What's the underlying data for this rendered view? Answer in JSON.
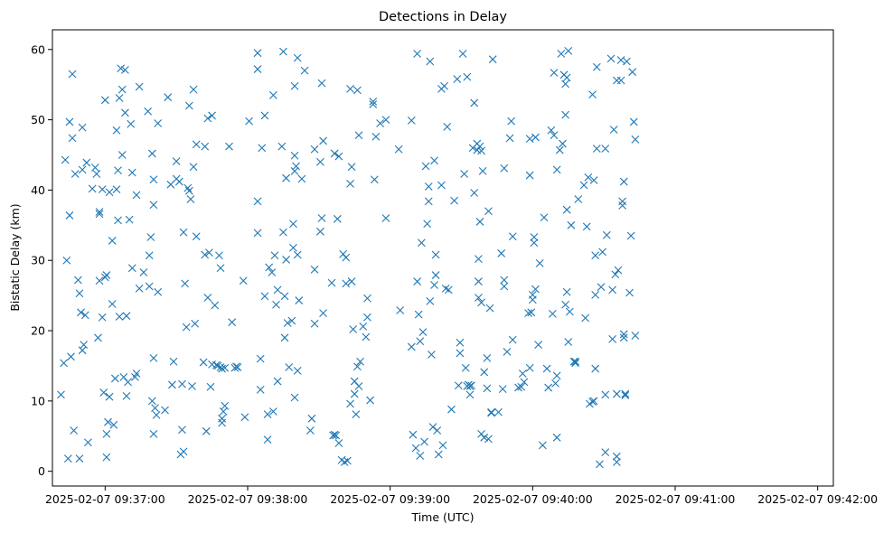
{
  "chart_data": {
    "type": "scatter",
    "title": "Detections in Delay",
    "xlabel": "Time (UTC)",
    "ylabel": "Bistatic Delay (km)",
    "marker": "x",
    "color": "#1f77b4",
    "xlim_minutes_after_0937": [
      -0.37,
      5.11
    ],
    "ylim": [
      -2.1,
      62.8
    ],
    "x_ticks": [
      {
        "value": 0,
        "label": "2025-02-07 09:37:00"
      },
      {
        "value": 1,
        "label": "2025-02-07 09:38:00"
      },
      {
        "value": 2,
        "label": "2025-02-07 09:39:00"
      },
      {
        "value": 3,
        "label": "2025-02-07 09:40:00"
      },
      {
        "value": 4,
        "label": "2025-02-07 09:41:00"
      },
      {
        "value": 5,
        "label": "2025-02-07 09:42:00"
      }
    ],
    "y_ticks": [
      0,
      10,
      20,
      30,
      40,
      50,
      60
    ],
    "points_x_unit": "minutes after 09:37:00",
    "points": [
      [
        -0.31,
        10.9
      ],
      [
        -0.29,
        15.4
      ],
      [
        -0.28,
        44.3
      ],
      [
        -0.27,
        30.0
      ],
      [
        -0.26,
        1.8
      ],
      [
        -0.25,
        49.7
      ],
      [
        -0.25,
        36.4
      ],
      [
        -0.24,
        16.3
      ],
      [
        -0.23,
        56.5
      ],
      [
        -0.23,
        47.4
      ],
      [
        -0.22,
        5.8
      ],
      [
        -0.21,
        42.3
      ],
      [
        -0.19,
        27.2
      ],
      [
        -0.18,
        25.3
      ],
      [
        -0.18,
        1.8
      ],
      [
        -0.17,
        22.6
      ],
      [
        -0.16,
        42.9
      ],
      [
        -0.16,
        48.9
      ],
      [
        -0.16,
        17.2
      ],
      [
        -0.15,
        18.0
      ],
      [
        -0.14,
        22.2
      ],
      [
        -0.13,
        43.9
      ],
      [
        -0.12,
        4.1
      ],
      [
        -0.09,
        40.2
      ],
      [
        -0.07,
        43.2
      ],
      [
        -0.06,
        42.3
      ],
      [
        -0.05,
        19.0
      ],
      [
        -0.04,
        36.6
      ],
      [
        -0.04,
        36.9
      ],
      [
        -0.04,
        27.1
      ],
      [
        -0.02,
        40.1
      ],
      [
        -0.02,
        21.9
      ],
      [
        -0.01,
        11.2
      ],
      [
        0.0,
        27.6
      ],
      [
        0.0,
        52.8
      ],
      [
        0.01,
        27.9
      ],
      [
        0.01,
        5.3
      ],
      [
        0.01,
        2.0
      ],
      [
        0.02,
        7.0
      ],
      [
        0.03,
        39.7
      ],
      [
        0.03,
        10.6
      ],
      [
        0.05,
        32.8
      ],
      [
        0.05,
        23.8
      ],
      [
        0.06,
        6.6
      ],
      [
        0.07,
        13.2
      ],
      [
        0.08,
        48.5
      ],
      [
        0.08,
        40.1
      ],
      [
        0.09,
        35.7
      ],
      [
        0.09,
        42.8
      ],
      [
        0.1,
        53.1
      ],
      [
        0.1,
        22.0
      ],
      [
        0.11,
        57.3
      ],
      [
        0.12,
        54.3
      ],
      [
        0.12,
        45.0
      ],
      [
        0.13,
        13.4
      ],
      [
        0.14,
        51.0
      ],
      [
        0.14,
        57.1
      ],
      [
        0.15,
        22.1
      ],
      [
        0.15,
        10.7
      ],
      [
        0.16,
        12.7
      ],
      [
        0.17,
        35.8
      ],
      [
        0.18,
        49.4
      ],
      [
        0.19,
        42.5
      ],
      [
        0.19,
        28.9
      ],
      [
        0.21,
        13.4
      ],
      [
        0.22,
        39.3
      ],
      [
        0.22,
        13.9
      ],
      [
        0.24,
        54.7
      ],
      [
        0.24,
        26.0
      ],
      [
        0.27,
        28.3
      ],
      [
        0.3,
        51.2
      ],
      [
        0.31,
        30.7
      ],
      [
        0.31,
        26.3
      ],
      [
        0.32,
        33.3
      ],
      [
        0.33,
        10.0
      ],
      [
        0.33,
        45.2
      ],
      [
        0.34,
        41.5
      ],
      [
        0.34,
        16.1
      ],
      [
        0.34,
        37.9
      ],
      [
        0.34,
        5.3
      ],
      [
        0.35,
        9.0
      ],
      [
        0.36,
        8.0
      ],
      [
        0.37,
        49.5
      ],
      [
        0.37,
        25.5
      ],
      [
        0.42,
        8.7
      ],
      [
        0.44,
        53.2
      ],
      [
        0.46,
        40.8
      ],
      [
        0.47,
        12.3
      ],
      [
        0.48,
        15.6
      ],
      [
        0.5,
        41.6
      ],
      [
        0.5,
        44.1
      ],
      [
        0.52,
        41.2
      ],
      [
        0.53,
        2.4
      ],
      [
        0.54,
        12.4
      ],
      [
        0.54,
        5.9
      ],
      [
        0.55,
        2.8
      ],
      [
        0.55,
        34.0
      ],
      [
        0.56,
        26.7
      ],
      [
        0.57,
        20.5
      ],
      [
        0.58,
        40.3
      ],
      [
        0.59,
        39.9
      ],
      [
        0.59,
        52.0
      ],
      [
        0.6,
        38.7
      ],
      [
        0.61,
        12.1
      ],
      [
        0.62,
        54.3
      ],
      [
        0.62,
        43.3
      ],
      [
        0.63,
        21.0
      ],
      [
        0.64,
        46.5
      ],
      [
        0.64,
        33.4
      ],
      [
        0.69,
        15.5
      ],
      [
        0.7,
        46.2
      ],
      [
        0.7,
        30.8
      ],
      [
        0.71,
        5.7
      ],
      [
        0.72,
        24.7
      ],
      [
        0.72,
        50.2
      ],
      [
        0.73,
        31.1
      ],
      [
        0.74,
        12.0
      ],
      [
        0.75,
        15.2
      ],
      [
        0.75,
        50.6
      ],
      [
        0.77,
        23.6
      ],
      [
        0.78,
        15.1
      ],
      [
        0.79,
        15.0
      ],
      [
        0.8,
        30.7
      ],
      [
        0.81,
        14.8
      ],
      [
        0.81,
        28.9
      ],
      [
        0.82,
        6.9
      ],
      [
        0.82,
        7.5
      ],
      [
        0.82,
        14.6
      ],
      [
        0.83,
        8.5
      ],
      [
        0.84,
        14.7
      ],
      [
        0.84,
        9.3
      ],
      [
        0.87,
        46.2
      ],
      [
        0.89,
        21.2
      ],
      [
        0.91,
        14.7
      ],
      [
        0.92,
        14.9
      ],
      [
        0.93,
        14.8
      ],
      [
        0.97,
        27.1
      ],
      [
        0.98,
        7.7
      ],
      [
        1.01,
        49.8
      ],
      [
        1.07,
        59.5
      ],
      [
        1.07,
        57.2
      ],
      [
        1.07,
        38.4
      ],
      [
        1.07,
        33.9
      ],
      [
        1.09,
        16.0
      ],
      [
        1.09,
        11.6
      ],
      [
        1.1,
        46.0
      ],
      [
        1.12,
        24.9
      ],
      [
        1.12,
        50.6
      ],
      [
        1.14,
        8.1
      ],
      [
        1.14,
        4.5
      ],
      [
        1.15,
        29.0
      ],
      [
        1.17,
        28.3
      ],
      [
        1.18,
        53.5
      ],
      [
        1.18,
        8.5
      ],
      [
        1.19,
        30.7
      ],
      [
        1.2,
        23.7
      ],
      [
        1.21,
        25.8
      ],
      [
        1.21,
        12.8
      ],
      [
        1.24,
        46.2
      ],
      [
        1.25,
        59.7
      ],
      [
        1.25,
        34.0
      ],
      [
        1.26,
        24.9
      ],
      [
        1.26,
        19.0
      ],
      [
        1.27,
        30.1
      ],
      [
        1.27,
        41.7
      ],
      [
        1.28,
        21.1
      ],
      [
        1.29,
        14.8
      ],
      [
        1.31,
        21.4
      ],
      [
        1.32,
        35.2
      ],
      [
        1.32,
        31.8
      ],
      [
        1.33,
        54.8
      ],
      [
        1.33,
        10.5
      ],
      [
        1.33,
        44.9
      ],
      [
        1.33,
        42.7
      ],
      [
        1.34,
        43.4
      ],
      [
        1.35,
        58.8
      ],
      [
        1.35,
        30.8
      ],
      [
        1.35,
        14.3
      ],
      [
        1.36,
        24.3
      ],
      [
        1.38,
        41.6
      ],
      [
        1.4,
        57.0
      ],
      [
        1.44,
        5.8
      ],
      [
        1.45,
        7.5
      ],
      [
        1.47,
        45.8
      ],
      [
        1.47,
        28.7
      ],
      [
        1.47,
        21.0
      ],
      [
        1.51,
        34.1
      ],
      [
        1.51,
        44.0
      ],
      [
        1.52,
        55.2
      ],
      [
        1.52,
        36.0
      ],
      [
        1.53,
        47.0
      ],
      [
        1.53,
        22.5
      ],
      [
        1.59,
        26.8
      ],
      [
        1.6,
        5.1
      ],
      [
        1.61,
        45.2
      ],
      [
        1.61,
        5.2
      ],
      [
        1.62,
        5.1
      ],
      [
        1.63,
        35.9
      ],
      [
        1.64,
        4.0
      ],
      [
        1.64,
        44.8
      ],
      [
        1.66,
        1.6
      ],
      [
        1.67,
        30.9
      ],
      [
        1.68,
        1.3
      ],
      [
        1.69,
        26.7
      ],
      [
        1.69,
        30.4
      ],
      [
        1.7,
        1.5
      ],
      [
        1.72,
        9.6
      ],
      [
        1.72,
        40.9
      ],
      [
        1.72,
        54.4
      ],
      [
        1.73,
        43.3
      ],
      [
        1.73,
        27.0
      ],
      [
        1.74,
        20.2
      ],
      [
        1.75,
        12.8
      ],
      [
        1.75,
        11.0
      ],
      [
        1.76,
        8.1
      ],
      [
        1.77,
        54.2
      ],
      [
        1.77,
        14.9
      ],
      [
        1.78,
        47.8
      ],
      [
        1.78,
        12.1
      ],
      [
        1.79,
        15.6
      ],
      [
        1.81,
        20.6
      ],
      [
        1.83,
        19.1
      ],
      [
        1.84,
        21.9
      ],
      [
        1.84,
        24.6
      ],
      [
        1.86,
        10.1
      ],
      [
        1.88,
        52.6
      ],
      [
        1.88,
        52.2
      ],
      [
        1.89,
        41.5
      ],
      [
        1.9,
        47.6
      ],
      [
        1.93,
        49.5
      ],
      [
        1.97,
        50.0
      ],
      [
        1.97,
        36.0
      ],
      [
        2.06,
        45.8
      ],
      [
        2.07,
        22.9
      ],
      [
        2.15,
        49.9
      ],
      [
        2.15,
        17.7
      ],
      [
        2.16,
        5.2
      ],
      [
        2.18,
        3.3
      ],
      [
        2.19,
        27.0
      ],
      [
        2.19,
        59.4
      ],
      [
        2.2,
        22.3
      ],
      [
        2.21,
        18.5
      ],
      [
        2.21,
        2.2
      ],
      [
        2.22,
        32.5
      ],
      [
        2.23,
        19.8
      ],
      [
        2.24,
        4.2
      ],
      [
        2.25,
        43.4
      ],
      [
        2.26,
        35.2
      ],
      [
        2.27,
        38.4
      ],
      [
        2.27,
        40.5
      ],
      [
        2.28,
        58.3
      ],
      [
        2.28,
        24.2
      ],
      [
        2.29,
        16.6
      ],
      [
        2.3,
        6.3
      ],
      [
        2.31,
        44.2
      ],
      [
        2.31,
        26.5
      ],
      [
        2.32,
        30.8
      ],
      [
        2.32,
        27.9
      ],
      [
        2.33,
        5.8
      ],
      [
        2.34,
        2.4
      ],
      [
        2.36,
        54.4
      ],
      [
        2.36,
        40.7
      ],
      [
        2.37,
        3.7
      ],
      [
        2.38,
        54.8
      ],
      [
        2.39,
        26.0
      ],
      [
        2.4,
        49.0
      ],
      [
        2.41,
        25.8
      ],
      [
        2.43,
        8.8
      ],
      [
        2.45,
        38.5
      ],
      [
        2.47,
        55.8
      ],
      [
        2.48,
        12.2
      ],
      [
        2.49,
        18.3
      ],
      [
        2.49,
        16.8
      ],
      [
        2.51,
        59.4
      ],
      [
        2.52,
        42.3
      ],
      [
        2.53,
        14.7
      ],
      [
        2.54,
        56.1
      ],
      [
        2.54,
        12.1
      ],
      [
        2.55,
        12.3
      ],
      [
        2.56,
        12.1
      ],
      [
        2.56,
        10.9
      ],
      [
        2.57,
        12.2
      ],
      [
        2.58,
        46.0
      ],
      [
        2.59,
        52.4
      ],
      [
        2.59,
        39.6
      ],
      [
        2.61,
        46.6
      ],
      [
        2.61,
        45.7
      ],
      [
        2.62,
        30.2
      ],
      [
        2.62,
        27.0
      ],
      [
        2.62,
        24.7
      ],
      [
        2.63,
        46.2
      ],
      [
        2.63,
        35.5
      ],
      [
        2.64,
        45.6
      ],
      [
        2.64,
        24.0
      ],
      [
        2.64,
        5.3
      ],
      [
        2.65,
        42.7
      ],
      [
        2.66,
        4.8
      ],
      [
        2.66,
        14.1
      ],
      [
        2.68,
        16.1
      ],
      [
        2.68,
        11.8
      ],
      [
        2.69,
        37.0
      ],
      [
        2.69,
        4.6
      ],
      [
        2.7,
        23.2
      ],
      [
        2.71,
        8.4
      ],
      [
        2.71,
        8.3
      ],
      [
        2.72,
        58.6
      ],
      [
        2.76,
        8.4
      ],
      [
        2.78,
        31.0
      ],
      [
        2.79,
        11.7
      ],
      [
        2.8,
        26.3
      ],
      [
        2.8,
        27.2
      ],
      [
        2.8,
        43.1
      ],
      [
        2.82,
        17.0
      ],
      [
        2.84,
        47.4
      ],
      [
        2.85,
        49.8
      ],
      [
        2.86,
        18.7
      ],
      [
        2.86,
        33.4
      ],
      [
        2.9,
        11.9
      ],
      [
        2.92,
        12.0
      ],
      [
        2.93,
        13.9
      ],
      [
        2.94,
        12.7
      ],
      [
        2.97,
        22.5
      ],
      [
        2.98,
        14.7
      ],
      [
        2.98,
        47.3
      ],
      [
        2.98,
        42.1
      ],
      [
        2.99,
        22.6
      ],
      [
        3.0,
        24.4
      ],
      [
        3.0,
        25.1
      ],
      [
        3.01,
        33.3
      ],
      [
        3.01,
        32.5
      ],
      [
        3.02,
        47.5
      ],
      [
        3.02,
        25.9
      ],
      [
        3.04,
        18.0
      ],
      [
        3.05,
        29.6
      ],
      [
        3.07,
        3.7
      ],
      [
        3.08,
        36.1
      ],
      [
        3.1,
        14.6
      ],
      [
        3.11,
        11.9
      ],
      [
        3.13,
        48.5
      ],
      [
        3.14,
        22.4
      ],
      [
        3.15,
        56.7
      ],
      [
        3.15,
        47.8
      ],
      [
        3.16,
        12.5
      ],
      [
        3.17,
        13.6
      ],
      [
        3.17,
        42.9
      ],
      [
        3.17,
        4.8
      ],
      [
        3.19,
        45.7
      ],
      [
        3.2,
        59.4
      ],
      [
        3.21,
        46.6
      ],
      [
        3.22,
        56.4
      ],
      [
        3.23,
        55.1
      ],
      [
        3.23,
        23.7
      ],
      [
        3.23,
        50.7
      ],
      [
        3.24,
        56.0
      ],
      [
        3.24,
        37.2
      ],
      [
        3.24,
        25.5
      ],
      [
        3.25,
        18.4
      ],
      [
        3.25,
        59.8
      ],
      [
        3.26,
        22.7
      ],
      [
        3.27,
        35.0
      ],
      [
        3.29,
        15.6
      ],
      [
        3.3,
        15.6
      ],
      [
        3.3,
        15.4
      ],
      [
        3.32,
        38.7
      ],
      [
        3.36,
        40.7
      ],
      [
        3.37,
        21.8
      ],
      [
        3.38,
        34.8
      ],
      [
        3.39,
        41.8
      ],
      [
        3.4,
        9.6
      ],
      [
        3.42,
        53.6
      ],
      [
        3.42,
        9.9
      ],
      [
        3.43,
        41.4
      ],
      [
        3.43,
        10.0
      ],
      [
        3.44,
        14.6
      ],
      [
        3.44,
        30.7
      ],
      [
        3.44,
        25.1
      ],
      [
        3.45,
        45.9
      ],
      [
        3.45,
        57.5
      ],
      [
        3.47,
        1.0
      ],
      [
        3.48,
        26.2
      ],
      [
        3.49,
        31.2
      ],
      [
        3.51,
        10.9
      ],
      [
        3.51,
        2.7
      ],
      [
        3.51,
        45.9
      ],
      [
        3.52,
        33.6
      ],
      [
        3.55,
        58.7
      ],
      [
        3.56,
        25.8
      ],
      [
        3.56,
        18.8
      ],
      [
        3.57,
        48.6
      ],
      [
        3.58,
        28.0
      ],
      [
        3.59,
        11.0
      ],
      [
        3.59,
        55.6
      ],
      [
        3.59,
        2.1
      ],
      [
        3.59,
        1.3
      ],
      [
        3.6,
        28.6
      ],
      [
        3.62,
        55.6
      ],
      [
        3.62,
        58.5
      ],
      [
        3.63,
        38.4
      ],
      [
        3.63,
        37.8
      ],
      [
        3.64,
        41.2
      ],
      [
        3.64,
        19.5
      ],
      [
        3.64,
        19.0
      ],
      [
        3.65,
        11.0
      ],
      [
        3.65,
        10.8
      ],
      [
        3.66,
        58.3
      ],
      [
        3.68,
        25.4
      ],
      [
        3.69,
        33.5
      ],
      [
        3.7,
        56.8
      ],
      [
        3.71,
        49.7
      ],
      [
        3.72,
        47.2
      ],
      [
        3.72,
        19.3
      ]
    ]
  }
}
